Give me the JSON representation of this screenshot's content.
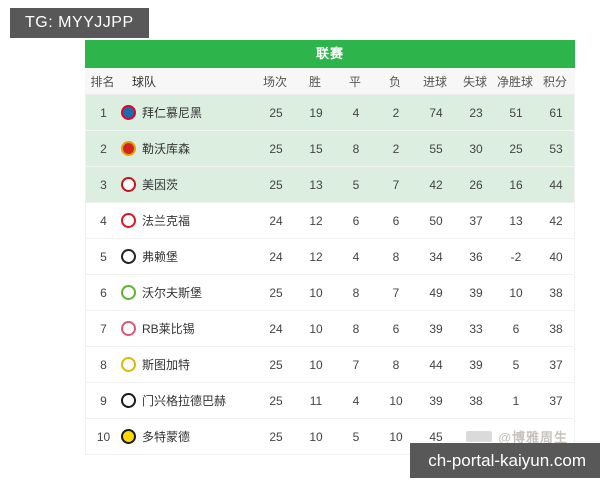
{
  "page": {
    "tg_badge": "TG: MYYJJPP",
    "site_badge": "ch-portal-kaiyun.com",
    "row_watermark": "@博雅周生"
  },
  "colors": {
    "accent_green": "#2db44b",
    "highlight_row_green": "#dbeee0",
    "badge_gray": "#585858"
  },
  "league": {
    "title": "联赛",
    "columns": [
      "排名",
      "球队",
      "场次",
      "胜",
      "平",
      "负",
      "进球",
      "失球",
      "净胜球",
      "积分"
    ],
    "rows": [
      {
        "rank": "1",
        "team": "拜仁慕尼黑",
        "played": "25",
        "win": "19",
        "draw": "4",
        "loss": "2",
        "gf": "74",
        "ga": "23",
        "gd": "51",
        "pts": "61",
        "highlight": true,
        "obscured": false,
        "logo": {
          "ring": "#d20a2e",
          "center": "#1b6bb2"
        }
      },
      {
        "rank": "2",
        "team": "勒沃库森",
        "played": "25",
        "win": "15",
        "draw": "8",
        "loss": "2",
        "gf": "55",
        "ga": "30",
        "gd": "25",
        "pts": "53",
        "highlight": true,
        "obscured": false,
        "logo": {
          "ring": "#e0a306",
          "center": "#d42222"
        }
      },
      {
        "rank": "3",
        "team": "美因茨",
        "played": "25",
        "win": "13",
        "draw": "5",
        "loss": "7",
        "gf": "42",
        "ga": "26",
        "gd": "16",
        "pts": "44",
        "highlight": true,
        "obscured": false,
        "logo": {
          "ring": "#c3141e",
          "center": "#ffffff"
        }
      },
      {
        "rank": "4",
        "team": "法兰克福",
        "played": "24",
        "win": "12",
        "draw": "6",
        "loss": "6",
        "gf": "50",
        "ga": "37",
        "gd": "13",
        "pts": "42",
        "highlight": false,
        "obscured": false,
        "logo": {
          "ring": "#d71920",
          "center": "#ffffff"
        }
      },
      {
        "rank": "5",
        "team": "弗赖堡",
        "played": "24",
        "win": "12",
        "draw": "4",
        "loss": "8",
        "gf": "34",
        "ga": "36",
        "gd": "-2",
        "pts": "40",
        "highlight": false,
        "obscured": false,
        "logo": {
          "ring": "#222222",
          "center": "#ffffff"
        }
      },
      {
        "rank": "6",
        "team": "沃尔夫斯堡",
        "played": "25",
        "win": "10",
        "draw": "8",
        "loss": "7",
        "gf": "49",
        "ga": "39",
        "gd": "10",
        "pts": "38",
        "highlight": false,
        "obscured": false,
        "logo": {
          "ring": "#61b233",
          "center": "#ffffff"
        }
      },
      {
        "rank": "7",
        "team": "RB莱比锡",
        "played": "24",
        "win": "10",
        "draw": "8",
        "loss": "6",
        "gf": "39",
        "ga": "33",
        "gd": "6",
        "pts": "38",
        "highlight": false,
        "obscured": false,
        "logo": {
          "ring": "#dd5577",
          "center": "#ffffff"
        }
      },
      {
        "rank": "8",
        "team": "斯图加特",
        "played": "25",
        "win": "10",
        "draw": "7",
        "loss": "8",
        "gf": "44",
        "ga": "39",
        "gd": "5",
        "pts": "37",
        "highlight": false,
        "obscured": false,
        "logo": {
          "ring": "#d9b810",
          "center": "#ffffff"
        }
      },
      {
        "rank": "9",
        "team": "门兴格拉德巴赫",
        "played": "25",
        "win": "11",
        "draw": "4",
        "loss": "10",
        "gf": "39",
        "ga": "38",
        "gd": "1",
        "pts": "37",
        "highlight": false,
        "obscured": false,
        "logo": {
          "ring": "#1a1a1a",
          "center": "#ffffff"
        }
      },
      {
        "rank": "10",
        "team": "多特蒙德",
        "played": "25",
        "win": "10",
        "draw": "5",
        "loss": "10",
        "gf": "45",
        "ga": "",
        "gd": "",
        "pts": "",
        "highlight": false,
        "obscured": true,
        "logo": {
          "ring": "#1a1a1a",
          "center": "#ffd900"
        }
      }
    ]
  }
}
